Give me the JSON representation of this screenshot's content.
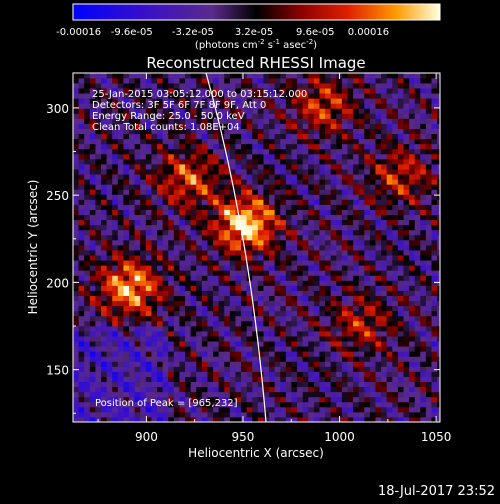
{
  "chart_data": {
    "type": "heatmap",
    "title": "Reconstructed RHESSI Image",
    "xlabel": "Heliocentric X (arcsec)",
    "ylabel": "Heliocentric Y (arcsec)",
    "xlim": [
      862,
      1052
    ],
    "ylim": [
      120,
      320
    ],
    "xticks": [
      900,
      950,
      1000,
      1050
    ],
    "yticks": [
      150,
      200,
      250,
      300
    ],
    "colorbar": {
      "ticks": [
        "-0.00016",
        "-9.6e-05",
        "-3.2e-05",
        "3.2e-05",
        "9.6e-05",
        "0.00016"
      ],
      "range": [
        -0.00016,
        0.00016
      ],
      "unit_main": "(photons cm",
      "unit_exp1": "-2",
      "unit_mid1": " s",
      "unit_exp2": "-1",
      "unit_mid2": " asec",
      "unit_exp3": "-2",
      "unit_end": ")"
    },
    "annotations": [
      "25-Jan-2015 03:05:12.000 to 03:15:12.000",
      "Detectors: 3F 5F 6F 7F 8F 9F, Att 0",
      "Energy Range: 25.0 - 50.0 keV",
      "Clean     Total counts: 1.08E+04"
    ],
    "peak_label": "Position of Peak = [965,232]",
    "peak": [
      965,
      232
    ],
    "bright_sources": [
      {
        "x": 950,
        "y": 232,
        "level": 1.0
      },
      {
        "x": 890,
        "y": 196,
        "level": 0.85
      },
      {
        "x": 920,
        "y": 258,
        "level": 0.6
      },
      {
        "x": 990,
        "y": 300,
        "level": 0.55
      },
      {
        "x": 1030,
        "y": 260,
        "level": 0.5
      },
      {
        "x": 1010,
        "y": 175,
        "level": 0.45
      }
    ],
    "limb": "white curved line (solar limb)",
    "colors": {
      "background": "#000000",
      "frame": "#ffffff",
      "limb": "#ffffff"
    }
  },
  "footer": {
    "timestamp": "18-Jul-2017 23:52"
  }
}
